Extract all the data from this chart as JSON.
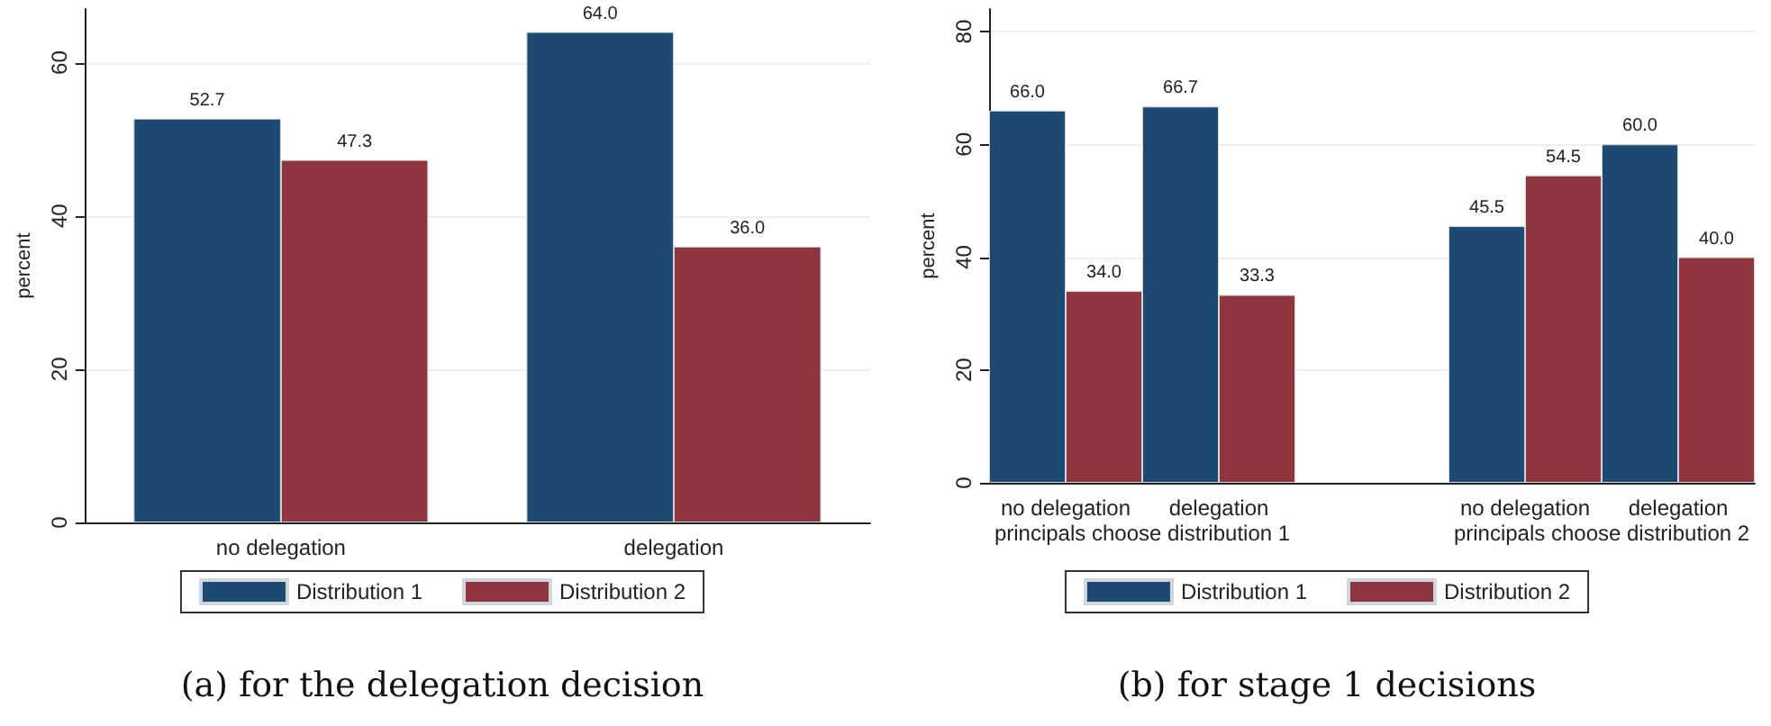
{
  "chart_data": [
    {
      "type": "bar",
      "title": "(a) for the delegation decision",
      "ylabel": "percent",
      "categories": [
        "no delegation",
        "delegation"
      ],
      "series": [
        {
          "name": "Distribution 1",
          "color": "#1e4a72",
          "values": [
            52.7,
            64.0
          ],
          "value_labels": [
            "52.7",
            "64.0"
          ]
        },
        {
          "name": "Distribution 2",
          "color": "#8f353d",
          "values": [
            47.3,
            36.0
          ],
          "value_labels": [
            "47.3",
            "36.0"
          ]
        }
      ],
      "ylim": [
        0,
        67
      ],
      "yticks": [
        0,
        20,
        40,
        60
      ],
      "grid": "y",
      "legend": "bottom"
    },
    {
      "type": "bar",
      "title": "(b) for stage 1 decisions",
      "ylabel": "percent",
      "categories": [
        "no delegation",
        "delegation",
        null,
        "no delegation",
        "delegation"
      ],
      "series": [
        {
          "name": "Distribution 1",
          "color": "#1e4a72",
          "values": [
            66.0,
            66.7,
            null,
            45.5,
            60.0
          ],
          "value_labels": [
            "66.0",
            "66.7",
            null,
            "45.5",
            "60.0"
          ]
        },
        {
          "name": "Distribution 2",
          "color": "#8f353d",
          "values": [
            34.0,
            33.3,
            null,
            54.5,
            40.0
          ],
          "value_labels": [
            "34.0",
            "33.3",
            null,
            "54.5",
            "40.0"
          ]
        }
      ],
      "annotations": [
        "principals choose distribution 1",
        "principals choose distribution 2"
      ],
      "ylim": [
        0,
        84
      ],
      "yticks": [
        0,
        20,
        40,
        60,
        80
      ],
      "grid": "y",
      "legend": "bottom"
    }
  ]
}
